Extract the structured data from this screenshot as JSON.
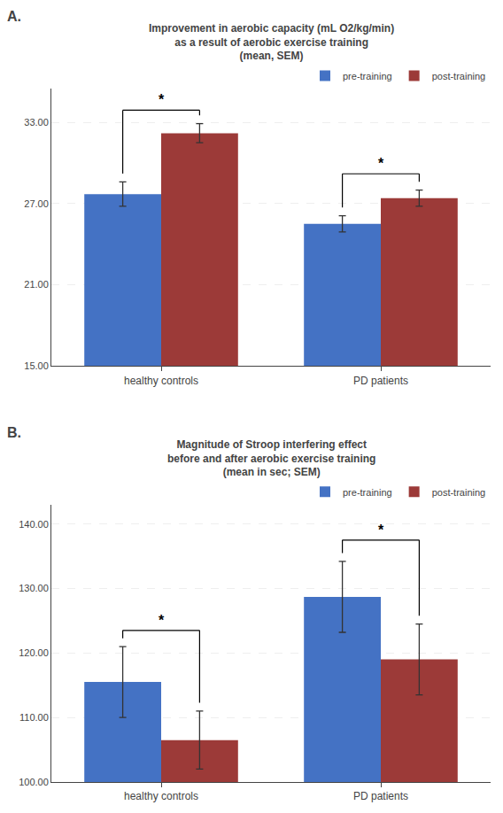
{
  "chart_data": [
    {
      "type": "bar",
      "title": "Improvement in aerobic capacity (mL O2/kg/min)\nas a result of aerobic exercise training\n(mean, SEM)",
      "categories": [
        "healthy controls",
        "PD patients"
      ],
      "series": [
        {
          "name": "pre-training",
          "color": "#4472C4",
          "values": [
            27.7,
            25.5
          ],
          "errors": [
            0.9,
            0.6
          ]
        },
        {
          "name": "post-training",
          "color": "#9C3A38",
          "values": [
            32.2,
            27.4
          ],
          "errors": [
            0.7,
            0.6
          ]
        }
      ],
      "ylim": [
        15.0,
        35.5
      ],
      "yticks": [
        {
          "value": 15.0,
          "label": "15.00"
        },
        {
          "value": 21.0,
          "label": "21.00"
        },
        {
          "value": 27.0,
          "label": "27.00"
        },
        {
          "value": 33.0,
          "label": "33.00"
        }
      ],
      "grid": true,
      "legend": "upper right",
      "annotations": [
        {
          "text": "A."
        },
        {
          "text": "*",
          "x": "healthy controls",
          "y": 33.9
        },
        {
          "text": "*",
          "x": "PD patients",
          "y": 29.2
        }
      ]
    },
    {
      "type": "bar",
      "title": "Magnitude of Stroop interfering effect\nbefore and after aerobic exercise training\n(mean in sec; SEM)",
      "categories": [
        "healthy controls",
        "PD patients"
      ],
      "series": [
        {
          "name": "pre-training",
          "color": "#4472C4",
          "values": [
            115.5,
            128.7
          ],
          "errors": [
            5.5,
            5.5
          ]
        },
        {
          "name": "post-training",
          "color": "#9C3A38",
          "values": [
            106.5,
            119.0
          ],
          "errors": [
            4.5,
            5.5
          ]
        }
      ],
      "ylim": [
        100.0,
        143.0
      ],
      "yticks": [
        {
          "value": 100.0,
          "label": "100.00"
        },
        {
          "value": 110.0,
          "label": "110.00"
        },
        {
          "value": 120.0,
          "label": "120.00"
        },
        {
          "value": 130.0,
          "label": "130.00"
        },
        {
          "value": 140.0,
          "label": "140.00"
        }
      ],
      "grid": true,
      "legend": "upper right",
      "annotations": [
        {
          "text": "B."
        },
        {
          "text": "*",
          "x": "healthy controls",
          "y": 123.5
        },
        {
          "text": "*",
          "x": "PD patients",
          "y": 137.5
        }
      ]
    }
  ]
}
